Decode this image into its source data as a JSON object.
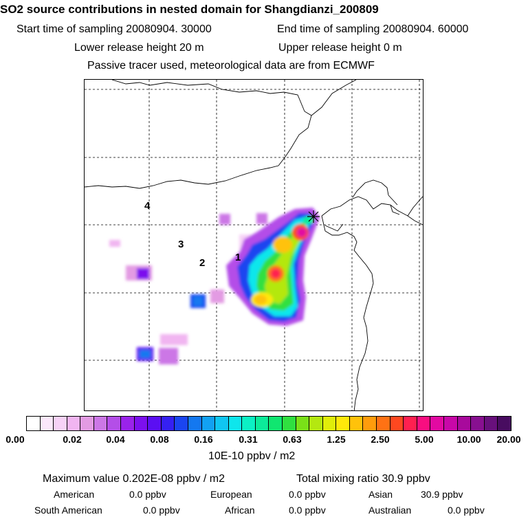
{
  "header": {
    "title": "SO2 source contributions in nested domain for Shangdianzi_200809",
    "start_time": "Start time of sampling 20080904. 30000",
    "end_time": "End time of sampling 20080904. 60000",
    "lower_release": "Lower release height   20 m",
    "upper_release": "Upper release height    0 m",
    "tracer_note": "Passive tracer used, meteorological data are from ECMWF"
  },
  "map": {
    "region_labels": [
      "1",
      "2",
      "3",
      "4"
    ]
  },
  "colorbar": {
    "ticks": [
      "0.00",
      "0.02",
      "0.04",
      "0.08",
      "0.16",
      "0.31",
      "0.63",
      "1.25",
      "2.50",
      "5.00",
      "10.00",
      "20.00"
    ],
    "unit": "10E-10 ppbv / m2",
    "colors": [
      "#ffffff",
      "#fbe8fb",
      "#f7d2f7",
      "#f1b5f1",
      "#e39be3",
      "#cc77e6",
      "#b44ee8",
      "#9a23ea",
      "#7c10ee",
      "#5b0ff2",
      "#3520f2",
      "#1a45f0",
      "#1478f0",
      "#12a1f2",
      "#10c6f2",
      "#0ee6ec",
      "#0cf0c4",
      "#0ceb9a",
      "#10e670",
      "#30e040",
      "#7ae018",
      "#b4e810",
      "#e0ee0a",
      "#ffe80a",
      "#ffc20a",
      "#ff9c0c",
      "#ff7214",
      "#ff4820",
      "#ff2050",
      "#f80e80",
      "#e20aa2",
      "#c808a8",
      "#a80a9c",
      "#881090",
      "#68107c",
      "#480c60"
    ]
  },
  "footer": {
    "max_value": "Maximum value  0.202E-08 ppbv / m2",
    "total_mixing": "Total mixing ratio       30.9 ppbv",
    "american": "American",
    "american_val": "0.0 ppbv",
    "european": "European",
    "european_val": "0.0 ppbv",
    "asian": "Asian",
    "asian_val": "30.9 ppbv",
    "south_american": "South American",
    "south_american_val": "0.0 ppbv",
    "african": "African",
    "african_val": "0.0 ppbv",
    "australian": "Australian",
    "australian_val": "0.0 ppbv"
  }
}
